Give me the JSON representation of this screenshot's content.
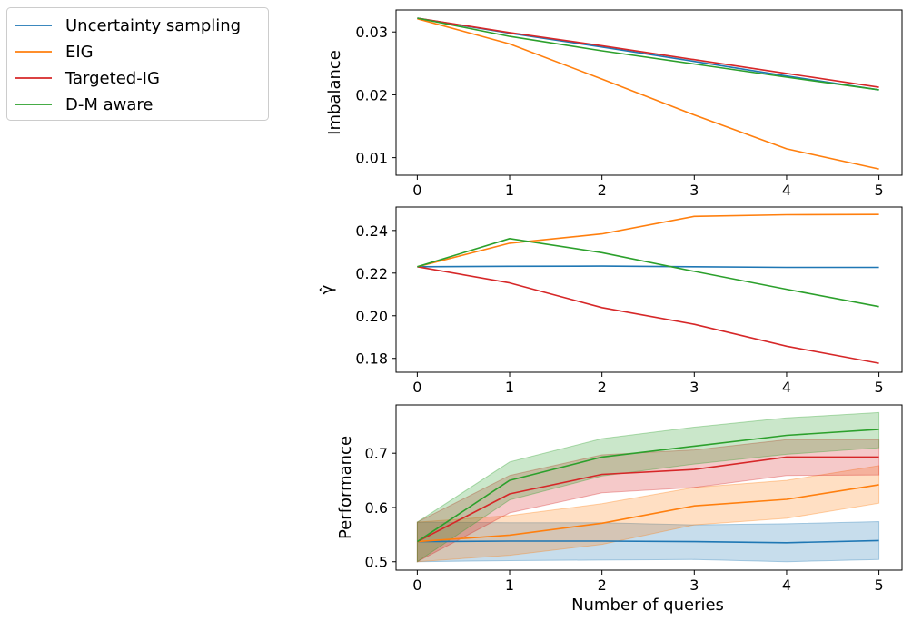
{
  "chart_data": {
    "type": "line",
    "legend": {
      "placement": "upper-left-outside",
      "entries": [
        {
          "name": "Uncertainty sampling",
          "color": "#1f77b4"
        },
        {
          "name": "EIG",
          "color": "#ff7f0e"
        },
        {
          "name": "Targeted-IG",
          "color": "#d62728"
        },
        {
          "name": "D-M aware",
          "color": "#2ca02c"
        }
      ]
    },
    "xlabel": "Number of queries",
    "x": [
      0,
      1,
      2,
      3,
      4,
      5
    ],
    "xticks": [
      "0",
      "1",
      "2",
      "3",
      "4",
      "5"
    ],
    "panels": [
      {
        "id": "imbalance",
        "ylabel": "Imbalance",
        "xlim": [
          -0.23,
          5.25
        ],
        "ylim": [
          0.0072,
          0.0335
        ],
        "yticks": [
          0.01,
          0.02,
          0.03
        ],
        "ytick_labels": [
          "0.01",
          "0.02",
          "0.03"
        ],
        "series": [
          {
            "name": "Uncertainty sampling",
            "color": "#1f77b4",
            "values": [
              0.0322,
              0.0298,
              0.0276,
              0.0253,
              0.023,
              0.0208
            ]
          },
          {
            "name": "EIG",
            "color": "#ff7f0e",
            "values": [
              0.0321,
              0.0281,
              0.0225,
              0.0168,
              0.0114,
              0.0082
            ]
          },
          {
            "name": "Targeted-IG",
            "color": "#d62728",
            "values": [
              0.0322,
              0.0299,
              0.0278,
              0.0256,
              0.0234,
              0.0212
            ]
          },
          {
            "name": "D-M aware",
            "color": "#2ca02c",
            "values": [
              0.0322,
              0.0293,
              0.027,
              0.0249,
              0.0228,
              0.0208
            ]
          }
        ]
      },
      {
        "id": "gamma",
        "ylabel": "γ̂",
        "xlim": [
          -0.23,
          5.25
        ],
        "ylim": [
          0.1735,
          0.251
        ],
        "yticks": [
          0.18,
          0.2,
          0.22,
          0.24
        ],
        "ytick_labels": [
          "0.18",
          "0.20",
          "0.22",
          "0.24"
        ],
        "series": [
          {
            "name": "Uncertainty sampling",
            "color": "#1f77b4",
            "values": [
              0.223,
              0.2232,
              0.2233,
              0.223,
              0.2227,
              0.2227
            ]
          },
          {
            "name": "EIG",
            "color": "#ff7f0e",
            "values": [
              0.223,
              0.234,
              0.2384,
              0.2466,
              0.2474,
              0.2475
            ]
          },
          {
            "name": "Targeted-IG",
            "color": "#d62728",
            "values": [
              0.223,
              0.2154,
              0.2038,
              0.196,
              0.1857,
              0.1777
            ]
          },
          {
            "name": "D-M aware",
            "color": "#2ca02c",
            "values": [
              0.223,
              0.2362,
              0.2296,
              0.2208,
              0.2124,
              0.2043
            ]
          }
        ]
      },
      {
        "id": "performance",
        "ylabel": "Performance",
        "xlim": [
          -0.23,
          5.25
        ],
        "ylim": [
          0.4845,
          0.789
        ],
        "yticks": [
          0.5,
          0.6,
          0.7
        ],
        "ytick_labels": [
          "0.5",
          "0.6",
          "0.7"
        ],
        "series": [
          {
            "name": "Uncertainty sampling",
            "color": "#1f77b4",
            "values": [
              0.537,
              0.538,
              0.538,
              0.537,
              0.535,
              0.539
            ],
            "lower": [
              0.5,
              0.502,
              0.503,
              0.504,
              0.5,
              0.504
            ],
            "upper": [
              0.573,
              0.572,
              0.572,
              0.568,
              0.57,
              0.574
            ]
          },
          {
            "name": "EIG",
            "color": "#ff7f0e",
            "values": [
              0.537,
              0.549,
              0.571,
              0.603,
              0.615,
              0.642
            ],
            "lower": [
              0.5,
              0.512,
              0.532,
              0.568,
              0.58,
              0.608
            ],
            "upper": [
              0.573,
              0.585,
              0.607,
              0.637,
              0.65,
              0.677
            ]
          },
          {
            "name": "Targeted-IG",
            "color": "#d62728",
            "values": [
              0.537,
              0.625,
              0.661,
              0.67,
              0.693,
              0.693
            ],
            "lower": [
              0.5,
              0.59,
              0.627,
              0.637,
              0.659,
              0.66
            ],
            "upper": [
              0.573,
              0.659,
              0.697,
              0.706,
              0.725,
              0.725
            ]
          },
          {
            "name": "D-M aware",
            "color": "#2ca02c",
            "values": [
              0.537,
              0.65,
              0.693,
              0.713,
              0.733,
              0.744
            ],
            "lower": [
              0.5,
              0.614,
              0.658,
              0.68,
              0.698,
              0.71
            ],
            "upper": [
              0.573,
              0.684,
              0.727,
              0.748,
              0.765,
              0.775
            ]
          }
        ]
      }
    ]
  }
}
